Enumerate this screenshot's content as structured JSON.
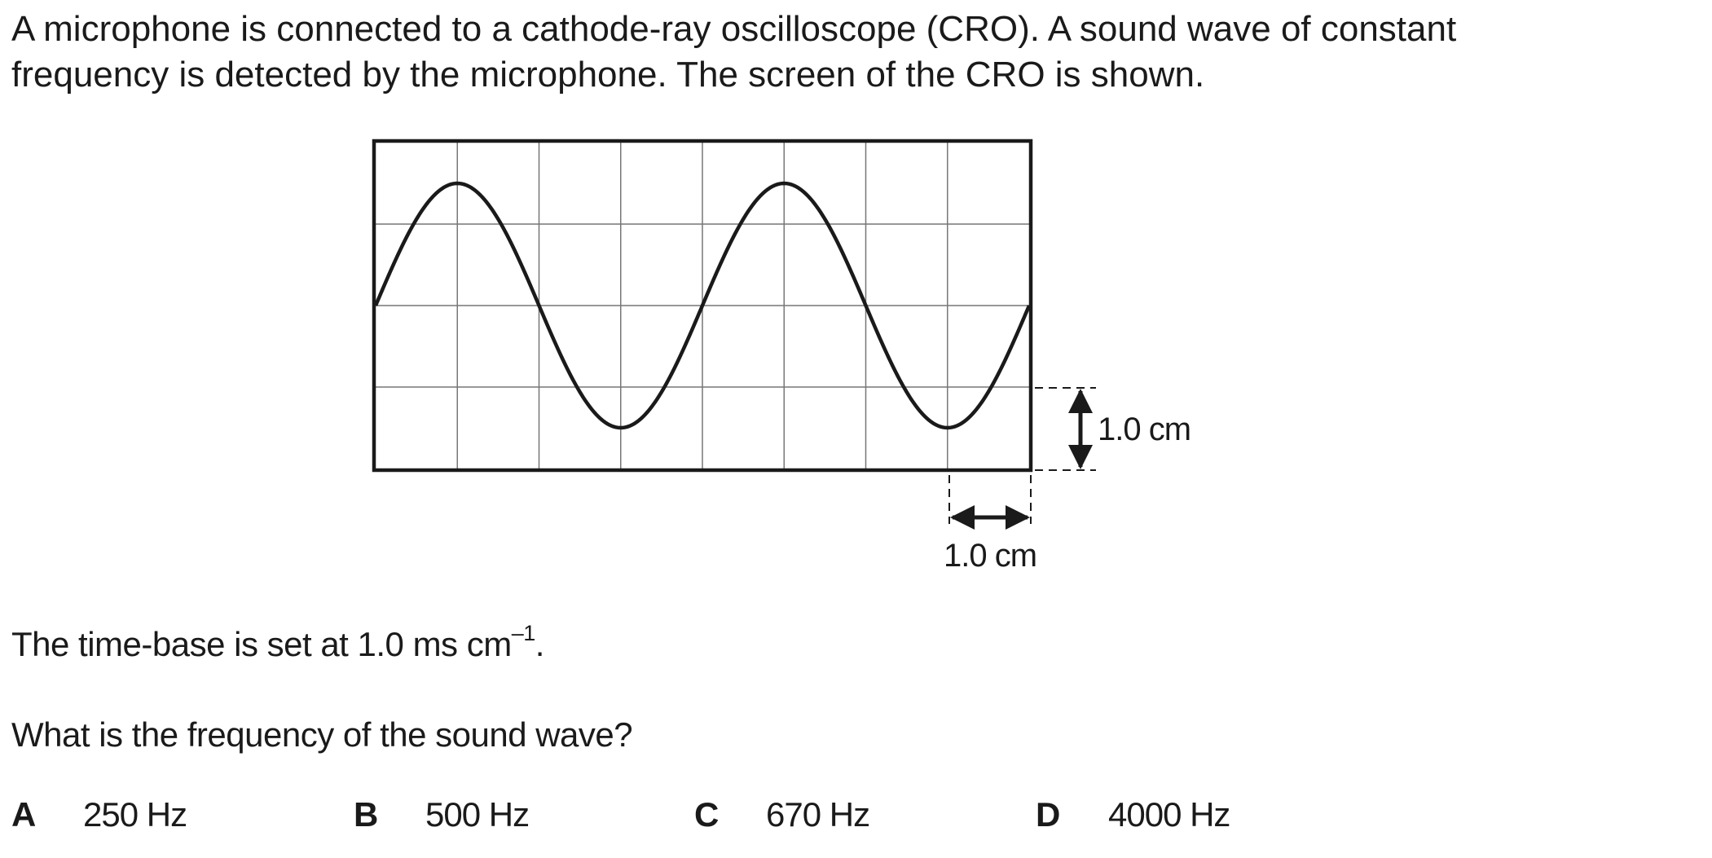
{
  "question": {
    "intro_line1": "A microphone is connected to a cathode-ray oscilloscope (CRO). A sound wave of constant",
    "intro_line2": "frequency is detected by the microphone. The screen of the CRO is shown.",
    "timebase_text": "The time-base is set at 1.0 ms cm",
    "timebase_exponent": "–1",
    "timebase_end": ".",
    "prompt": "What is the frequency of the sound wave?"
  },
  "diagram": {
    "vertical_scale_label": "1.0 cm",
    "horizontal_scale_label": "1.0 cm",
    "grid": {
      "columns": 8,
      "rows": 4
    },
    "wave": {
      "cycles_shown": 2,
      "amplitude_divisions": 1.5,
      "period_divisions": 4
    }
  },
  "options": [
    {
      "letter": "A",
      "value": "250 Hz"
    },
    {
      "letter": "B",
      "value": "500 Hz"
    },
    {
      "letter": "C",
      "value": "670 Hz"
    },
    {
      "letter": "D",
      "value": "4000 Hz"
    }
  ]
}
